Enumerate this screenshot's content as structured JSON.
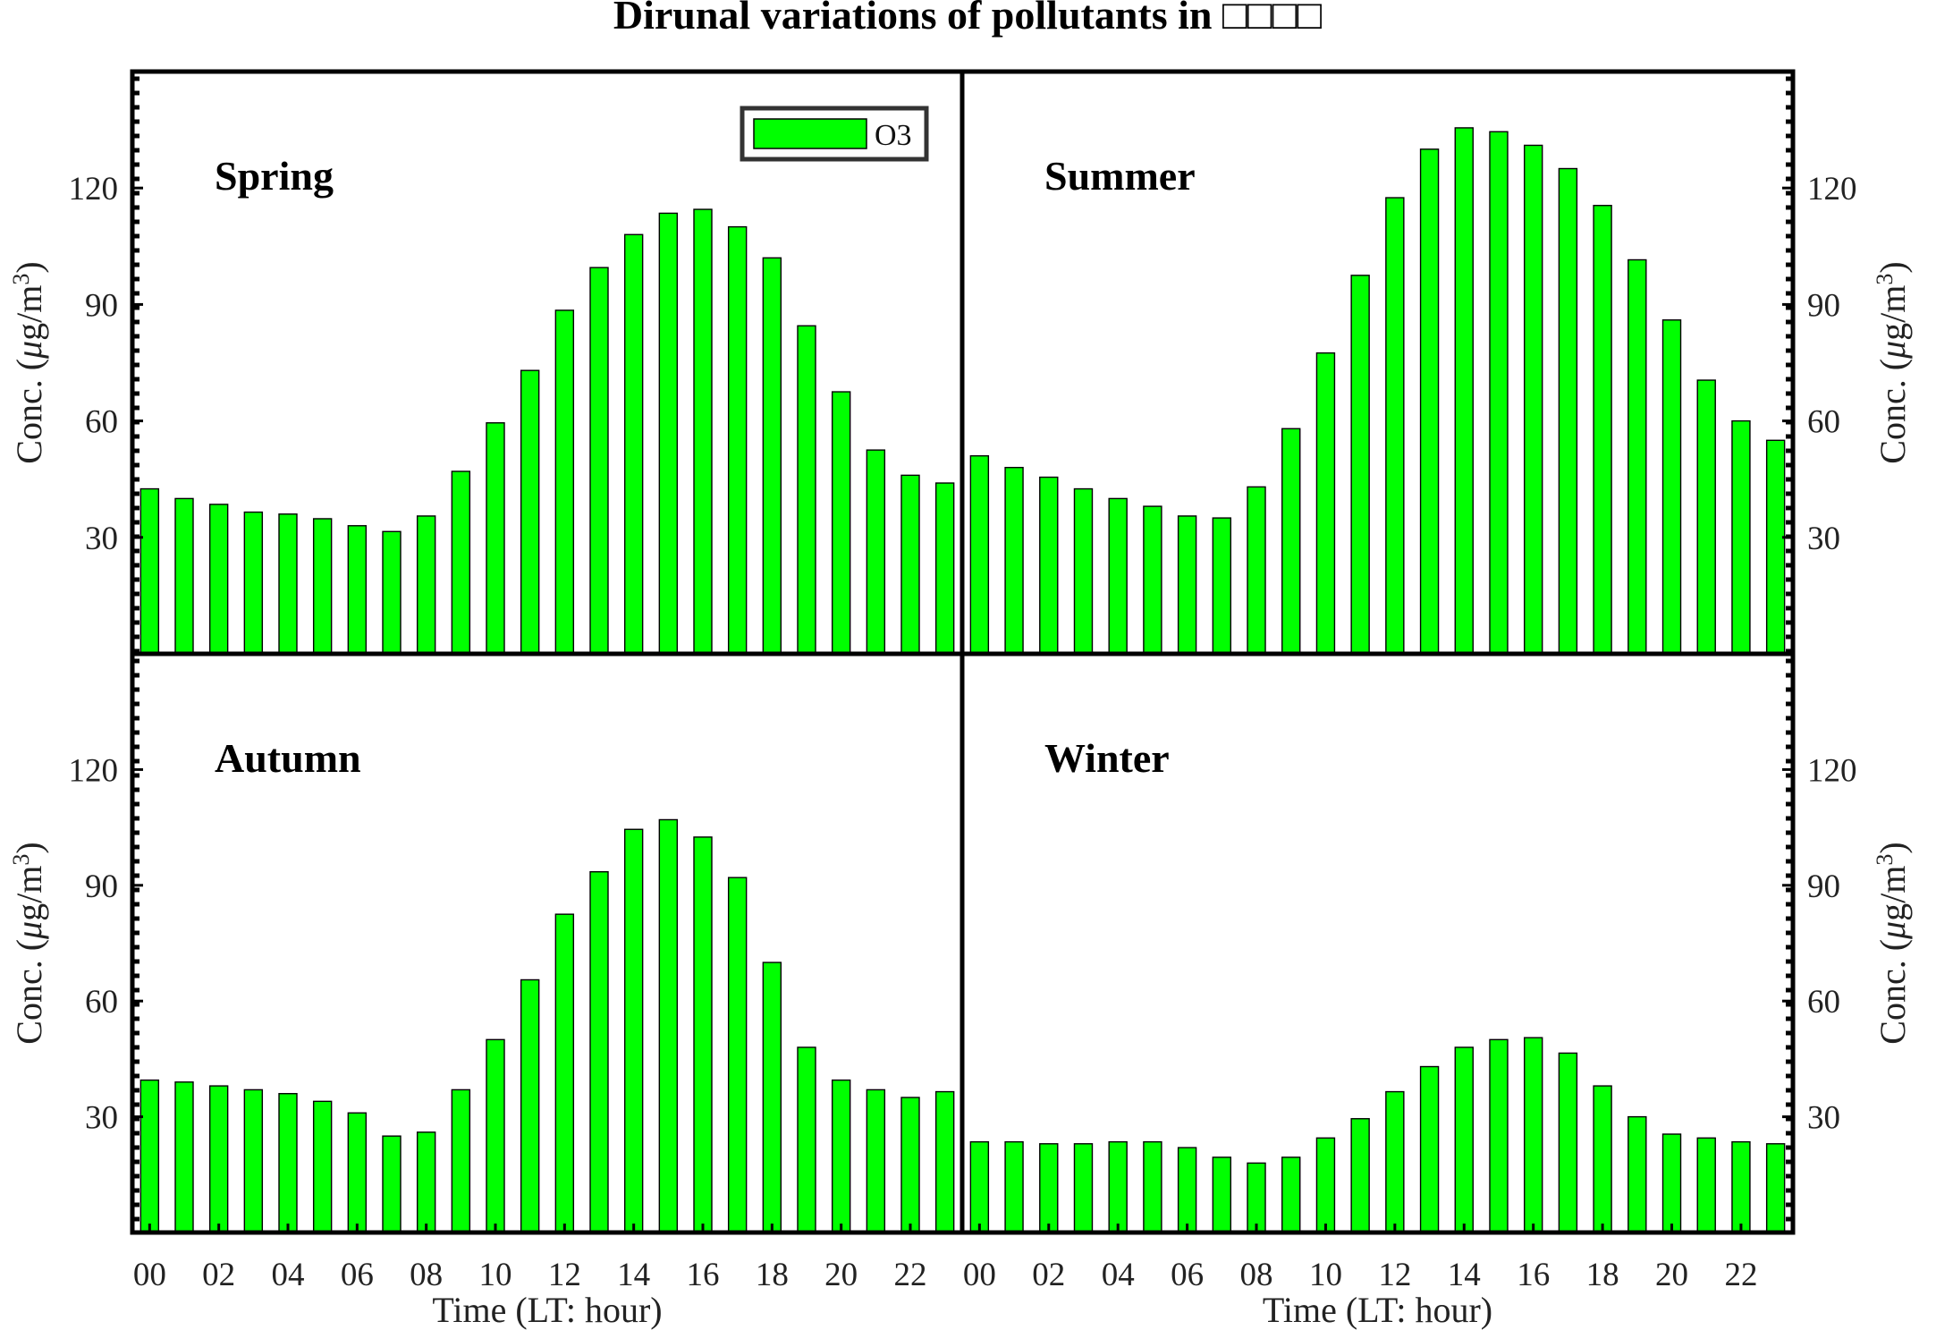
{
  "chart_data": {
    "type": "bar",
    "title": "Dirunal variations of pollutants in □□□□",
    "xlabel": "Time (LT: hour)",
    "ylabel": "Conc. (μg/m³)",
    "ylabel_parts": {
      "prefix": "Conc. (",
      "mu": "μ",
      "unit": "g/m",
      "sup": "3",
      "suffix": ")"
    },
    "ylim": [
      0,
      150
    ],
    "yticks": [
      30,
      60,
      90,
      120
    ],
    "xticks": [
      "00",
      "02",
      "04",
      "06",
      "08",
      "10",
      "12",
      "14",
      "16",
      "18",
      "20",
      "22"
    ],
    "hours": [
      0,
      1,
      2,
      3,
      4,
      5,
      6,
      7,
      8,
      9,
      10,
      11,
      12,
      13,
      14,
      15,
      16,
      17,
      18,
      19,
      20,
      21,
      22,
      23
    ],
    "legend": {
      "label": "O3",
      "position": "top-right"
    },
    "colors": {
      "bar": "#00ff00",
      "edge": "#000000"
    },
    "panels": [
      {
        "season": "Spring",
        "values": [
          42.5,
          40,
          38.5,
          36.5,
          36,
          34.8,
          33,
          31.5,
          35.5,
          47,
          59.5,
          73,
          88.5,
          99.5,
          108,
          113.5,
          114.5,
          110,
          102,
          84.5,
          67.5,
          52.5,
          46,
          44
        ]
      },
      {
        "season": "Summer",
        "values": [
          51,
          48,
          45.5,
          42.5,
          40,
          38,
          35.5,
          35,
          43,
          58,
          77.5,
          97.5,
          117.5,
          130,
          135.5,
          134.5,
          131,
          125,
          115.5,
          101.5,
          86,
          70.5,
          60,
          55
        ]
      },
      {
        "season": "Autumn",
        "values": [
          39.5,
          39,
          38,
          37,
          36,
          34,
          31,
          25,
          26,
          37,
          50,
          65.5,
          82.5,
          93.5,
          104.5,
          107,
          102.5,
          92,
          70,
          48,
          39.5,
          37,
          35,
          36.5
        ]
      },
      {
        "season": "Winter",
        "values": [
          23.5,
          23.5,
          23,
          23,
          23.5,
          23.5,
          22,
          19.5,
          18,
          19.5,
          24.5,
          29.5,
          36.5,
          43,
          48,
          50,
          50.5,
          46.5,
          38,
          30,
          25.5,
          24.5,
          23.5,
          23
        ]
      }
    ]
  }
}
